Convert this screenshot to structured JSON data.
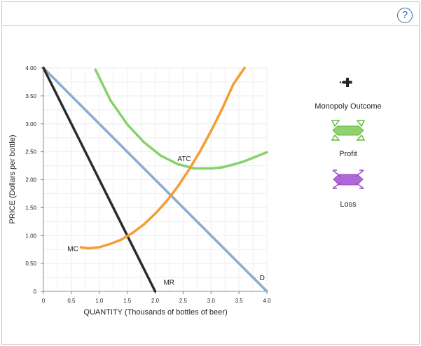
{
  "help": {
    "label": "?"
  },
  "legend": {
    "monopoly": "Monopoly Outcome",
    "profit": "Profit",
    "loss": "Loss",
    "colors": {
      "monopoly": "#222222",
      "profit": "#8fd16a",
      "profitEdge": "#66bb44",
      "loss": "#b067d8",
      "lossEdge": "#9a48c8"
    }
  },
  "chart_data": {
    "type": "line",
    "xlabel": "QUANTITY (Thousands of bottles of beer)",
    "ylabel": "PRICE (Dollars per bottle)",
    "xlim": [
      0,
      4.0
    ],
    "ylim": [
      0,
      4.0
    ],
    "x_ticks": [
      "0",
      "0.5",
      "1.0",
      "1.5",
      "2.0",
      "2.5",
      "3.0",
      "3.5",
      "4.0"
    ],
    "y_ticks": [
      "0",
      "0.50",
      "1.00",
      "1.50",
      "2.00",
      "2.50",
      "3.00",
      "3.50",
      "4.00"
    ],
    "grid": true,
    "series": [
      {
        "name": "D",
        "label": "D",
        "color": "#87acd2",
        "x": [
          0,
          4.0
        ],
        "y": [
          4.0,
          0
        ]
      },
      {
        "name": "MR",
        "label": "MR",
        "color": "#2b2b2b",
        "x": [
          0,
          2.0
        ],
        "y": [
          4.0,
          0
        ]
      },
      {
        "name": "ATC",
        "label": "ATC",
        "color": "#86d16a",
        "x": [
          0.93,
          1.2,
          1.5,
          1.8,
          2.1,
          2.4,
          2.7,
          2.8,
          3.0,
          3.2,
          3.4,
          3.6,
          3.8,
          4.0
        ],
        "y": [
          3.97,
          3.42,
          2.99,
          2.67,
          2.43,
          2.28,
          2.2,
          2.2,
          2.2,
          2.22,
          2.27,
          2.33,
          2.41,
          2.49
        ]
      },
      {
        "name": "MC",
        "label": "MC",
        "color": "#f59c34",
        "x": [
          0.67,
          0.8,
          1.0,
          1.2,
          1.4,
          1.6,
          1.8,
          2.0,
          2.2,
          2.4,
          2.6,
          2.8,
          3.0,
          3.2,
          3.4,
          3.6
        ],
        "y": [
          0.79,
          0.77,
          0.79,
          0.85,
          0.93,
          1.05,
          1.2,
          1.39,
          1.61,
          1.87,
          2.17,
          2.5,
          2.87,
          3.27,
          3.71,
          4.0
        ]
      }
    ]
  }
}
